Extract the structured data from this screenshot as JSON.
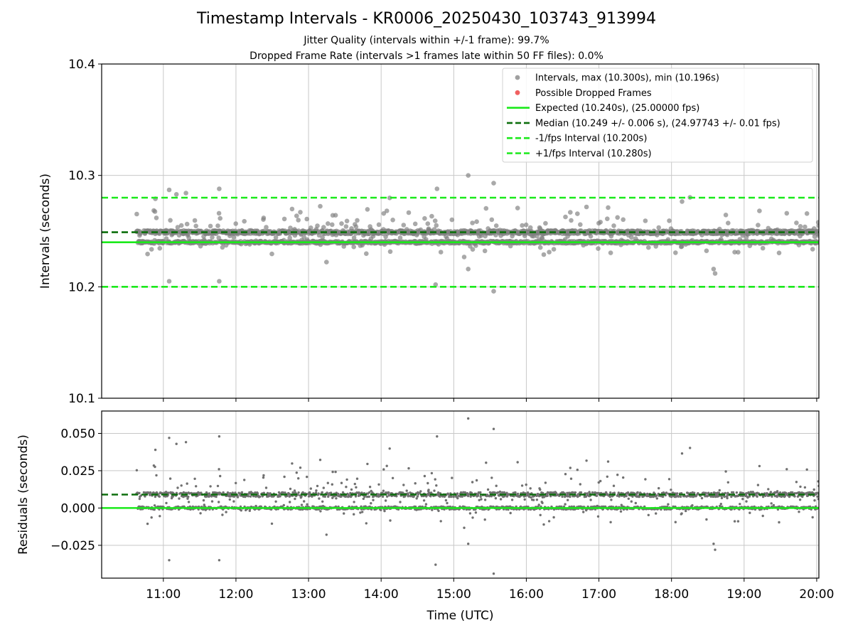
{
  "title": "Timestamp Intervals - KR0006_20250430_103743_913994",
  "subtitle_1": "Jitter Quality (intervals within +/-1 frame): 99.7%",
  "subtitle_2": "Dropped Frame Rate (intervals >1 frames late within 50 FF files): 0.0%",
  "colors": {
    "points": "#808080",
    "dropped": "#f05050",
    "expected": "#1aea1a",
    "median": "#0d6e0d",
    "bounds": "#1aea1a",
    "grid": "#c8c8c8"
  },
  "chart_data": [
    {
      "id": "intervals",
      "type": "scatter",
      "ylabel": "Intervals (seconds)",
      "ylim": [
        10.1,
        10.4
      ],
      "yticks": [
        10.1,
        10.2,
        10.3,
        10.4
      ],
      "ytick_labels": [
        "10.1",
        "10.2",
        "10.3",
        "10.4"
      ],
      "xlim_hours": [
        10.15,
        20.03
      ],
      "xticks_hours": [
        11,
        12,
        13,
        14,
        15,
        16,
        17,
        18,
        19,
        20
      ],
      "xtick_labels": [
        "11:00",
        "12:00",
        "13:00",
        "14:00",
        "15:00",
        "16:00",
        "17:00",
        "18:00",
        "19:00",
        "20:00"
      ],
      "grid": true,
      "reference_lines": [
        {
          "name": "expected",
          "y": 10.24,
          "style": "solid"
        },
        {
          "name": "median",
          "y": 10.249,
          "style": "dashed"
        },
        {
          "name": "lower",
          "y": 10.2,
          "style": "dashed"
        },
        {
          "name": "upper",
          "y": 10.28,
          "style": "dashed"
        }
      ],
      "legend": {
        "placement": "top-right",
        "entries": [
          {
            "kind": "dot",
            "color": "#a0a0a0",
            "label": "Intervals, max (10.300s), min (10.196s)"
          },
          {
            "kind": "dot",
            "color": "#f06060",
            "label": "Possible Dropped Frames"
          },
          {
            "kind": "solid",
            "color": "#1aea1a",
            "label": "Expected (10.240s), (25.00000 fps)"
          },
          {
            "kind": "dashed",
            "color": "#0d6e0d",
            "label": "Median (10.249 +/- 0.006 s), (24.97743 +/- 0.01 fps)"
          },
          {
            "kind": "dashed",
            "color": "#1aea1a",
            "label": "-1/fps Interval (10.200s)"
          },
          {
            "kind": "dashed",
            "color": "#1aea1a",
            "label": "+1/fps Interval (10.280s)"
          }
        ]
      },
      "series": {
        "name": "Intervals",
        "x_start_hours": 10.63,
        "x_end_hours": 20.03,
        "count": 2400,
        "median": 10.249,
        "expected": 10.24,
        "max": 10.3,
        "min": 10.196,
        "notable_points": [
          {
            "x": 15.2,
            "y": 10.3
          },
          {
            "x": 15.55,
            "y": 10.293
          },
          {
            "x": 14.77,
            "y": 10.288
          },
          {
            "x": 11.77,
            "y": 10.288
          },
          {
            "x": 11.08,
            "y": 10.287
          },
          {
            "x": 11.18,
            "y": 10.283
          },
          {
            "x": 10.89,
            "y": 10.279
          },
          {
            "x": 15.55,
            "y": 10.196
          },
          {
            "x": 14.75,
            "y": 10.202
          },
          {
            "x": 11.08,
            "y": 10.205
          },
          {
            "x": 11.77,
            "y": 10.205
          },
          {
            "x": 15.2,
            "y": 10.216
          },
          {
            "x": 18.58,
            "y": 10.216
          },
          {
            "x": 18.6,
            "y": 10.212
          }
        ]
      }
    },
    {
      "id": "residuals",
      "type": "scatter",
      "xlabel": "Time (UTC)",
      "ylabel": "Residuals (seconds)",
      "ylim": [
        -0.047,
        0.065
      ],
      "yticks": [
        -0.025,
        0.0,
        0.025,
        0.05
      ],
      "ytick_labels": [
        "−0.025",
        "0.000",
        "0.025",
        "0.050"
      ],
      "grid": true,
      "reference_lines": [
        {
          "name": "expected",
          "y": 0.0,
          "style": "solid"
        },
        {
          "name": "median",
          "y": 0.009,
          "style": "dashed"
        }
      ]
    }
  ]
}
